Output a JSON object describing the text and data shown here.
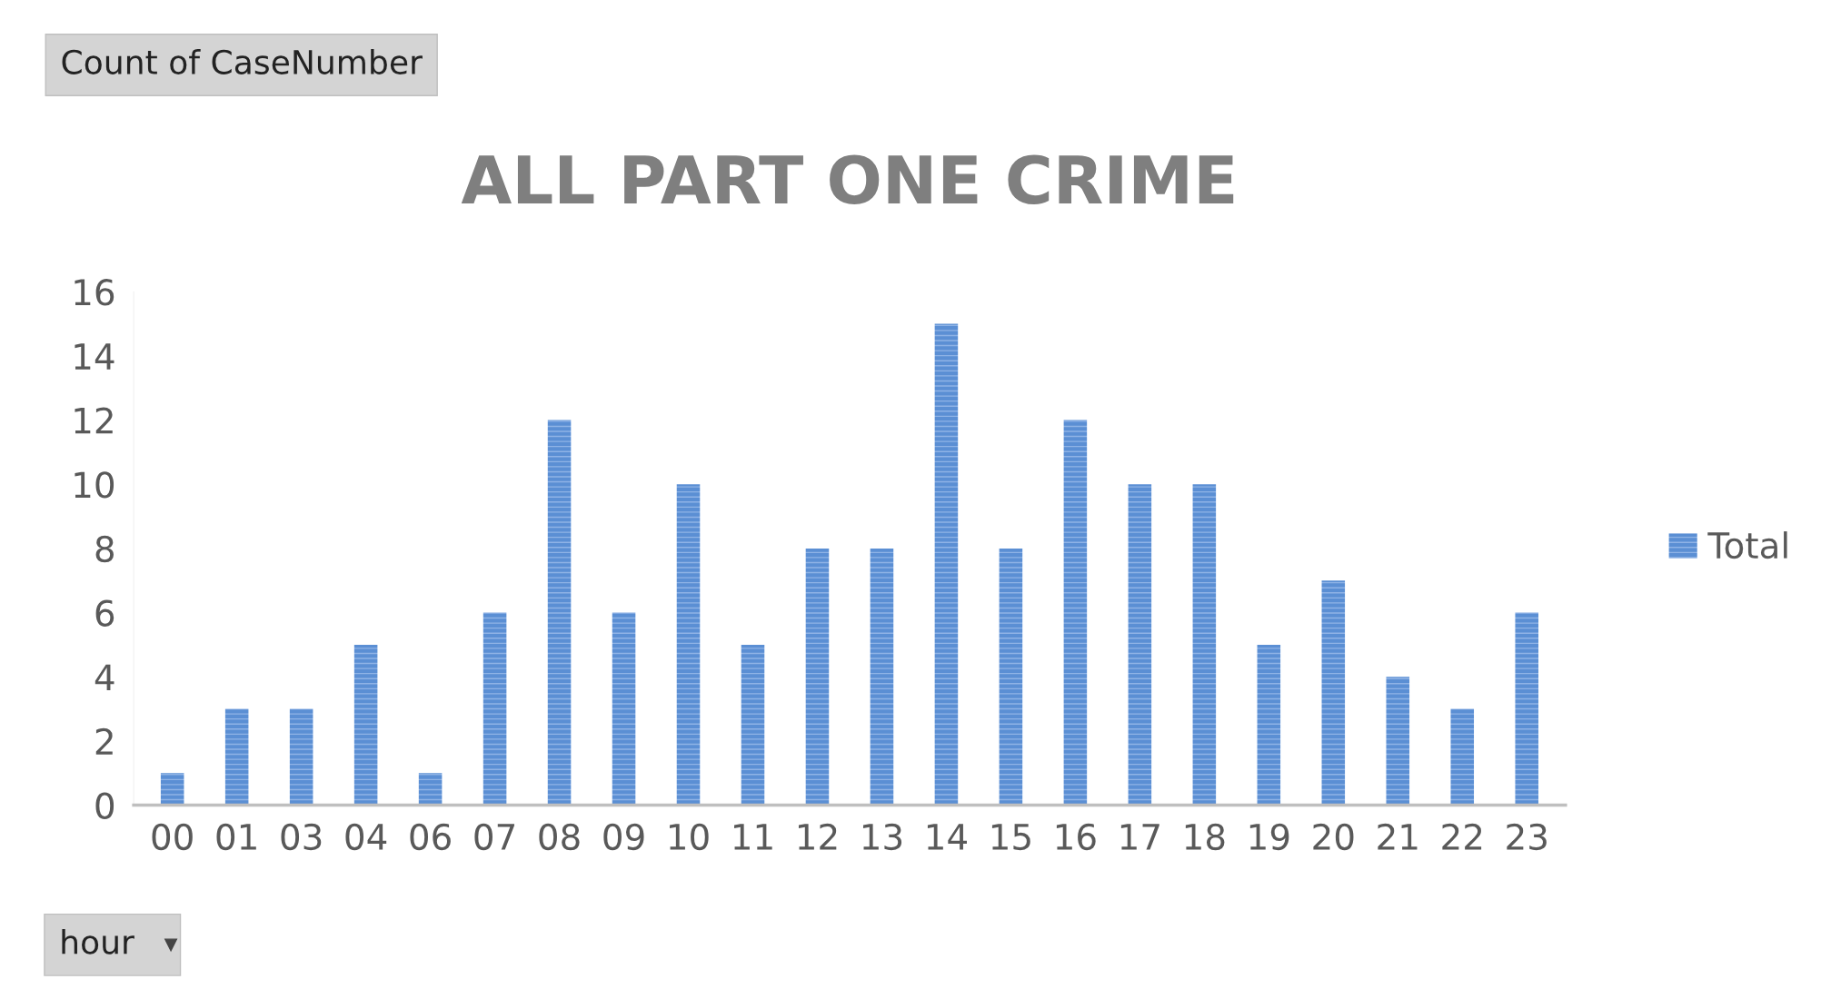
{
  "chart_data": {
    "type": "bar",
    "title": "ALL PART ONE CRIME",
    "annotations": [
      "Count of CaseNumber"
    ],
    "xlabel": "hour",
    "categories": [
      "00",
      "01",
      "03",
      "04",
      "06",
      "07",
      "08",
      "09",
      "10",
      "11",
      "12",
      "13",
      "14",
      "15",
      "16",
      "17",
      "18",
      "19",
      "20",
      "21",
      "22",
      "23"
    ],
    "series": [
      {
        "name": "Total",
        "color": "#5b8fd4",
        "values": [
          1,
          3,
          3,
          5,
          1,
          6,
          12,
          6,
          10,
          5,
          8,
          8,
          15,
          8,
          12,
          10,
          10,
          5,
          7,
          4,
          3,
          6
        ]
      }
    ],
    "ylim": [
      0,
      16
    ],
    "yticks": [
      0,
      2,
      4,
      6,
      8,
      10,
      12,
      14,
      16
    ],
    "grid": false,
    "legend": "right"
  }
}
